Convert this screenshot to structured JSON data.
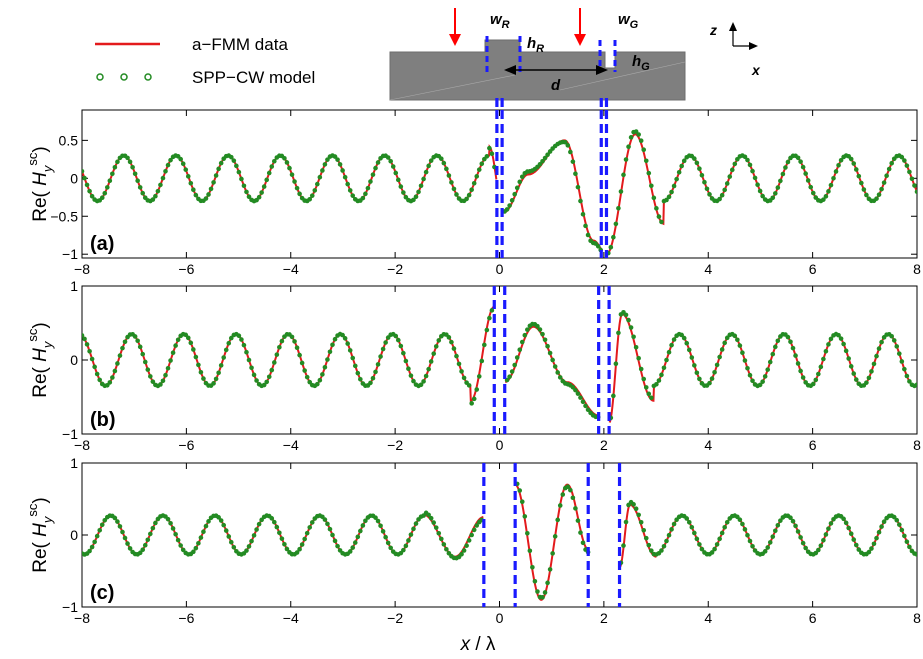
{
  "legend": {
    "items": [
      {
        "label": "a−FMM data",
        "color": "#e31a1c",
        "kind": "line"
      },
      {
        "label": "SPP−CW model",
        "color": "#238b23",
        "kind": "marker"
      }
    ]
  },
  "schematic": {
    "labels": {
      "wR": "w",
      "wR_sub": "R",
      "hR": "h",
      "hR_sub": "R",
      "wG": "w",
      "wG_sub": "G",
      "hG": "h",
      "hG_sub": "G",
      "d": "d"
    },
    "axes": {
      "z": "z",
      "x": "x"
    }
  },
  "colors": {
    "afmm": "#e31a1c",
    "sppcw": "#238b23",
    "groove": "#1a1aff",
    "substrate": "#7f7f7f"
  },
  "chart_data": [
    {
      "type": "line",
      "panel": "(a)",
      "ylabel": {
        "prefix": "Re(",
        "var": "H",
        "sub": "y",
        "sup": "sc",
        "suffix": ")"
      },
      "xlim": [
        -8,
        8
      ],
      "ylim": [
        -1.05,
        0.9
      ],
      "xticks": [
        -8,
        -6,
        -4,
        -2,
        0,
        2,
        4,
        6,
        8
      ],
      "yticks": [
        -1,
        -0.5,
        0,
        0.5
      ],
      "ytick_labels": [
        "−1",
        "−0.5",
        "0",
        "0.5"
      ],
      "grooves": [
        [
          -0.05,
          0.05
        ],
        [
          1.95,
          2.05
        ]
      ],
      "wave": {
        "amplitude": 0.3,
        "period": 1.0
      },
      "region_peaks": [
        {
          "x": -0.2,
          "y": 0.42
        },
        {
          "x": 0.08,
          "y": -0.45
        },
        {
          "x": 0.55,
          "y": 0.05
        },
        {
          "x": 1.25,
          "y": 0.5
        },
        {
          "x": 1.8,
          "y": -0.82
        },
        {
          "x": 2.05,
          "y": -1.0
        },
        {
          "x": 2.6,
          "y": 0.58
        },
        {
          "x": 3.15,
          "y": -0.6
        }
      ],
      "series": [
        {
          "name": "a−FMM data"
        },
        {
          "name": "SPP−CW model"
        }
      ]
    },
    {
      "type": "line",
      "panel": "(b)",
      "ylabel": {
        "prefix": "Re(",
        "var": "H",
        "sub": "y",
        "sup": "sc",
        "suffix": ")"
      },
      "xlim": [
        -8,
        8
      ],
      "ylim": [
        -1,
        1
      ],
      "xticks": [
        -8,
        -6,
        -4,
        -2,
        0,
        2,
        4,
        6,
        8
      ],
      "yticks": [
        -1,
        0,
        1
      ],
      "ytick_labels": [
        "−1",
        "0",
        "1"
      ],
      "grooves": [
        [
          -0.1,
          0.1
        ],
        [
          1.9,
          2.1
        ]
      ],
      "wave": {
        "amplitude": 0.35,
        "period": 1.0
      },
      "region_peaks": [
        {
          "x": -0.55,
          "y": -0.55
        },
        {
          "x": -0.1,
          "y": 0.72
        },
        {
          "x": 0.1,
          "y": -0.3
        },
        {
          "x": 0.65,
          "y": 0.45
        },
        {
          "x": 1.3,
          "y": -0.3
        },
        {
          "x": 1.9,
          "y": -0.75
        },
        {
          "x": 2.1,
          "y": -0.85
        },
        {
          "x": 2.35,
          "y": 0.62
        },
        {
          "x": 2.95,
          "y": -0.55
        }
      ],
      "series": [
        {
          "name": "a−FMM data"
        },
        {
          "name": "SPP−CW model"
        }
      ]
    },
    {
      "type": "line",
      "panel": "(c)",
      "ylabel": {
        "prefix": "Re(",
        "var": "H",
        "sub": "y",
        "sup": "sc",
        "suffix": ")"
      },
      "xlim": [
        -8,
        8
      ],
      "ylim": [
        -1,
        1
      ],
      "xticks": [
        -8,
        -6,
        -4,
        -2,
        0,
        2,
        4,
        6,
        8
      ],
      "yticks": [
        -1,
        0,
        1
      ],
      "ytick_labels": [
        "−1",
        "0",
        "1"
      ],
      "grooves": [
        [
          -0.3,
          0.3
        ],
        [
          1.7,
          2.3
        ]
      ],
      "wave": {
        "amplitude": 0.27,
        "period": 1.0
      },
      "region_peaks": [
        {
          "x": -1.45,
          "y": 0.28
        },
        {
          "x": -0.85,
          "y": -0.3
        },
        {
          "x": -0.3,
          "y": 0.25
        },
        {
          "x": 0.3,
          "y": 0.7
        },
        {
          "x": 0.8,
          "y": -0.9
        },
        {
          "x": 1.3,
          "y": 0.7
        },
        {
          "x": 1.7,
          "y": -0.2
        },
        {
          "x": 2.3,
          "y": -0.45
        },
        {
          "x": 2.5,
          "y": 0.42
        },
        {
          "x": 3.0,
          "y": -0.3
        }
      ],
      "series": [
        {
          "name": "a−FMM data"
        },
        {
          "name": "SPP−CW model"
        }
      ]
    }
  ],
  "xlabel": {
    "var": "x",
    "sep": " / ",
    "unit": "λ"
  }
}
